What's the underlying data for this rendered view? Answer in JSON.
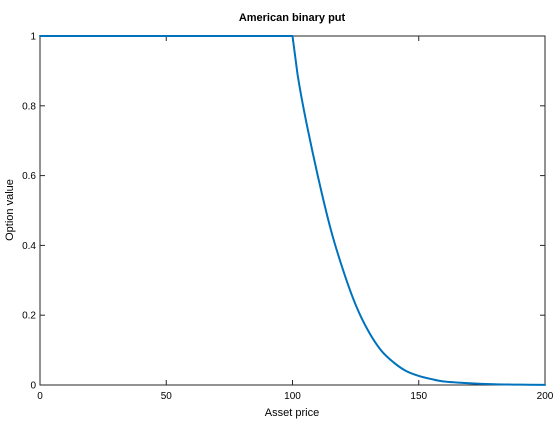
{
  "chart_data": {
    "type": "line",
    "title": "American binary put",
    "xlabel": "Asset price",
    "ylabel": "Option value",
    "xlim": [
      0,
      200
    ],
    "ylim": [
      0,
      1
    ],
    "xticks": [
      0,
      50,
      100,
      150,
      200
    ],
    "yticks": [
      0,
      0.2,
      0.4,
      0.6,
      0.8,
      1
    ],
    "xtick_labels": [
      "0",
      "50",
      "100",
      "150",
      "200"
    ],
    "ytick_labels": [
      "0",
      "0.2",
      "0.4",
      "0.6",
      "0.8",
      "1"
    ],
    "grid": false,
    "legend": false,
    "series": [
      {
        "color": "#0072bd",
        "x": [
          0,
          20,
          40,
          60,
          80,
          100,
          102,
          105,
          110,
          115,
          120,
          125,
          130,
          135,
          140,
          145,
          150,
          155,
          160,
          170,
          180,
          190,
          200
        ],
        "y": [
          1,
          1,
          1,
          1,
          1,
          1,
          0.89,
          0.77,
          0.6,
          0.45,
          0.33,
          0.23,
          0.155,
          0.1,
          0.065,
          0.04,
          0.026,
          0.017,
          0.01,
          0.005,
          0.002,
          0.001,
          0.0005
        ]
      }
    ]
  }
}
